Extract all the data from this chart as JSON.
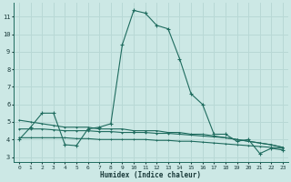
{
  "xlabel": "Humidex (Indice chaleur)",
  "bg_color": "#cce8e5",
  "grid_color": "#b8d8d5",
  "line_color": "#1e6b5e",
  "xlim": [
    -0.5,
    23.5
  ],
  "ylim": [
    2.7,
    11.8
  ],
  "xticks": [
    0,
    1,
    2,
    3,
    4,
    5,
    6,
    7,
    8,
    9,
    10,
    11,
    12,
    13,
    14,
    15,
    16,
    17,
    18,
    19,
    20,
    21,
    22,
    23
  ],
  "yticks": [
    3,
    4,
    5,
    6,
    7,
    8,
    9,
    10,
    11
  ],
  "curve_x": [
    0,
    1,
    2,
    3,
    4,
    5,
    6,
    7,
    8,
    9,
    10,
    11,
    12,
    13,
    14,
    15,
    16,
    17,
    18,
    19,
    20,
    21,
    22,
    23
  ],
  "curve_y": [
    4.0,
    4.7,
    5.5,
    5.5,
    3.7,
    3.65,
    4.6,
    4.7,
    4.9,
    9.4,
    11.35,
    11.2,
    10.5,
    10.3,
    8.6,
    6.6,
    6.0,
    4.3,
    4.3,
    3.9,
    4.0,
    3.2,
    3.5,
    3.4
  ],
  "trend1_x": [
    0,
    1,
    2,
    3,
    4,
    5,
    6,
    7,
    8,
    9,
    10,
    11,
    12,
    13,
    14,
    15,
    16,
    17,
    18,
    19,
    20,
    21,
    22,
    23
  ],
  "trend1_y": [
    5.1,
    5.0,
    4.9,
    4.8,
    4.7,
    4.7,
    4.7,
    4.6,
    4.6,
    4.6,
    4.5,
    4.5,
    4.5,
    4.4,
    4.4,
    4.3,
    4.3,
    4.2,
    4.1,
    4.0,
    3.9,
    3.8,
    3.7,
    3.55
  ],
  "trend2_x": [
    0,
    1,
    2,
    3,
    4,
    5,
    6,
    7,
    8,
    9,
    10,
    11,
    12,
    13,
    14,
    15,
    16,
    17,
    18,
    19,
    20,
    21,
    22,
    23
  ],
  "trend2_y": [
    4.6,
    4.6,
    4.6,
    4.55,
    4.5,
    4.5,
    4.5,
    4.45,
    4.45,
    4.4,
    4.4,
    4.4,
    4.35,
    4.35,
    4.3,
    4.25,
    4.2,
    4.15,
    4.1,
    4.0,
    3.9,
    3.8,
    3.7,
    3.55
  ],
  "trend3_x": [
    0,
    1,
    2,
    3,
    4,
    5,
    6,
    7,
    8,
    9,
    10,
    11,
    12,
    13,
    14,
    15,
    16,
    17,
    18,
    19,
    20,
    21,
    22,
    23
  ],
  "trend3_y": [
    4.1,
    4.1,
    4.1,
    4.1,
    4.1,
    4.05,
    4.05,
    4.0,
    4.0,
    4.0,
    4.0,
    4.0,
    3.95,
    3.95,
    3.9,
    3.9,
    3.85,
    3.8,
    3.75,
    3.7,
    3.65,
    3.6,
    3.55,
    3.5
  ]
}
